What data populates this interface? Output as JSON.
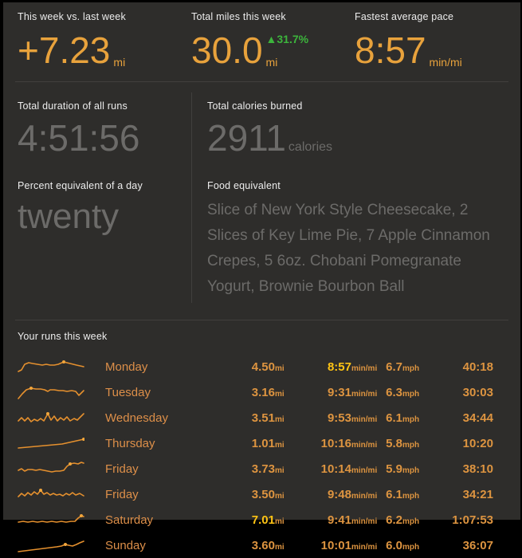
{
  "colors": {
    "background": "#2e2d2b",
    "accent_orange": "#e8a23c",
    "table_orange": "#dd9440",
    "highlight_yellow": "#ffc414",
    "delta_green": "#3cb43c",
    "muted_gray": "#6c6b69",
    "label_white": "#ededed"
  },
  "stats": [
    {
      "label": "This week vs. last week",
      "value": "+7.23",
      "suffix": "mi"
    },
    {
      "label": "Total miles this week",
      "value": "30.0",
      "suffix": "mi",
      "delta_arrow": "▲",
      "delta": "31.7%"
    },
    {
      "label": "Fastest average pace",
      "value": "8:57",
      "suffix": "min/mi"
    }
  ],
  "details": {
    "duration": {
      "label": "Total duration of all runs",
      "value": "4:51:56"
    },
    "calories": {
      "label": "Total calories burned",
      "value": "2911",
      "suffix": "calories"
    },
    "day_percent": {
      "label": "Percent equivalent of a day",
      "value": "twenty"
    },
    "food": {
      "label": "Food equivalent",
      "value": "Slice of New York Style Cheesecake, 2 Slices of Key Lime Pie, 7 Apple Cinnamon Crepes, 5 6oz. Chobani Pomegranate Yogurt, Brownie Bourbon Ball"
    }
  },
  "runs": {
    "title": "Your runs this week",
    "rows": [
      {
        "day": "Monday",
        "miles": "4.50",
        "miles_suffix": "mi",
        "miles_highlight": false,
        "pace": "8:57",
        "pace_suffix": "min/mi",
        "pace_highlight": true,
        "speed": "6.7",
        "speed_suffix": "mph",
        "duration": "40:18",
        "spark": [
          [
            1,
            17
          ],
          [
            5,
            15
          ],
          [
            9,
            8
          ],
          [
            14,
            6
          ],
          [
            19,
            7
          ],
          [
            25,
            8
          ],
          [
            31,
            9
          ],
          [
            36,
            8
          ],
          [
            41,
            9
          ],
          [
            46,
            9
          ],
          [
            51,
            8
          ],
          [
            58,
            5
          ],
          [
            66,
            7
          ],
          [
            74,
            9
          ],
          [
            83,
            11
          ]
        ],
        "dot": [
          58,
          5
        ]
      },
      {
        "day": "Tuesday",
        "miles": "3.16",
        "miles_suffix": "mi",
        "miles_highlight": false,
        "pace": "9:31",
        "pace_suffix": "min/mi",
        "pace_highlight": false,
        "speed": "6.3",
        "speed_suffix": "mph",
        "duration": "30:03",
        "spark": [
          [
            1,
            19
          ],
          [
            6,
            13
          ],
          [
            11,
            8
          ],
          [
            17,
            6
          ],
          [
            23,
            7
          ],
          [
            29,
            7
          ],
          [
            34,
            8
          ],
          [
            38,
            10
          ],
          [
            41,
            8
          ],
          [
            46,
            8
          ],
          [
            52,
            9
          ],
          [
            57,
            9
          ],
          [
            62,
            10
          ],
          [
            68,
            9
          ],
          [
            73,
            10
          ],
          [
            77,
            15
          ],
          [
            83,
            9
          ]
        ],
        "dot": [
          17,
          6
        ]
      },
      {
        "day": "Wednesday",
        "miles": "3.51",
        "miles_suffix": "mi",
        "miles_highlight": false,
        "pace": "9:53",
        "pace_suffix": "min/mi",
        "pace_highlight": false,
        "speed": "6.1",
        "speed_suffix": "mph",
        "duration": "34:44",
        "spark": [
          [
            1,
            15
          ],
          [
            5,
            11
          ],
          [
            9,
            15
          ],
          [
            13,
            11
          ],
          [
            17,
            16
          ],
          [
            21,
            13
          ],
          [
            25,
            15
          ],
          [
            29,
            12
          ],
          [
            33,
            15
          ],
          [
            38,
            6
          ],
          [
            42,
            14
          ],
          [
            46,
            9
          ],
          [
            50,
            15
          ],
          [
            54,
            11
          ],
          [
            58,
            14
          ],
          [
            62,
            10
          ],
          [
            66,
            15
          ],
          [
            71,
            12
          ],
          [
            75,
            14
          ],
          [
            83,
            6
          ]
        ],
        "dot": [
          38,
          6
        ]
      },
      {
        "day": "Thursday",
        "miles": "1.01",
        "miles_suffix": "mi",
        "miles_highlight": false,
        "pace": "10:16",
        "pace_suffix": "min/mi",
        "pace_highlight": false,
        "speed": "5.8",
        "speed_suffix": "mph",
        "duration": "10:20",
        "spark": [
          [
            1,
            17
          ],
          [
            12,
            16
          ],
          [
            23,
            15
          ],
          [
            34,
            14
          ],
          [
            45,
            13
          ],
          [
            56,
            12
          ],
          [
            65,
            10
          ],
          [
            74,
            8
          ],
          [
            83,
            6
          ]
        ],
        "dot": [
          83,
          6
        ]
      },
      {
        "day": "Friday",
        "miles": "3.73",
        "miles_suffix": "mi",
        "miles_highlight": false,
        "pace": "10:14",
        "pace_suffix": "min/mi",
        "pace_highlight": false,
        "speed": "5.9",
        "speed_suffix": "mph",
        "duration": "38:10",
        "spark": [
          [
            1,
            13
          ],
          [
            5,
            11
          ],
          [
            9,
            14
          ],
          [
            13,
            12
          ],
          [
            18,
            12
          ],
          [
            23,
            13
          ],
          [
            28,
            12
          ],
          [
            33,
            13
          ],
          [
            38,
            14
          ],
          [
            43,
            15
          ],
          [
            48,
            14
          ],
          [
            53,
            14
          ],
          [
            58,
            13
          ],
          [
            62,
            8
          ],
          [
            66,
            5
          ],
          [
            71,
            4
          ],
          [
            76,
            5
          ],
          [
            80,
            3
          ],
          [
            83,
            4
          ]
        ],
        "dot": [
          66,
          5
        ]
      },
      {
        "day": "Friday",
        "miles": "3.50",
        "miles_suffix": "mi",
        "miles_highlight": false,
        "pace": "9:48",
        "pace_suffix": "min/mi",
        "pace_highlight": false,
        "speed": "6.1",
        "speed_suffix": "mph",
        "duration": "34:21",
        "spark": [
          [
            1,
            14
          ],
          [
            5,
            10
          ],
          [
            9,
            13
          ],
          [
            13,
            9
          ],
          [
            17,
            12
          ],
          [
            21,
            8
          ],
          [
            25,
            11
          ],
          [
            29,
            6
          ],
          [
            33,
            11
          ],
          [
            37,
            9
          ],
          [
            41,
            12
          ],
          [
            45,
            10
          ],
          [
            49,
            12
          ],
          [
            53,
            11
          ],
          [
            57,
            13
          ],
          [
            61,
            10
          ],
          [
            65,
            12
          ],
          [
            69,
            9
          ],
          [
            73,
            12
          ],
          [
            78,
            10
          ],
          [
            83,
            13
          ]
        ],
        "dot": [
          29,
          6
        ]
      },
      {
        "day": "Saturday",
        "miles": "7.01",
        "miles_suffix": "mi",
        "miles_highlight": true,
        "pace": "9:41",
        "pace_suffix": "min/mi",
        "pace_highlight": false,
        "speed": "6.2",
        "speed_suffix": "mph",
        "duration": "1:07:53",
        "spark": [
          [
            1,
            14
          ],
          [
            7,
            13
          ],
          [
            13,
            14
          ],
          [
            19,
            13
          ],
          [
            25,
            14
          ],
          [
            31,
            13
          ],
          [
            37,
            14
          ],
          [
            43,
            13
          ],
          [
            49,
            14
          ],
          [
            55,
            13
          ],
          [
            61,
            14
          ],
          [
            67,
            13
          ],
          [
            72,
            13
          ],
          [
            76,
            9
          ],
          [
            80,
            6
          ],
          [
            83,
            7
          ]
        ],
        "dot": [
          80,
          6
        ]
      },
      {
        "day": "Sunday",
        "miles": "3.60",
        "miles_suffix": "mi",
        "miles_highlight": false,
        "pace": "10:01",
        "pace_suffix": "min/mi",
        "pace_highlight": false,
        "speed": "6.0",
        "speed_suffix": "mph",
        "duration": "36:07",
        "spark": [
          [
            1,
            19
          ],
          [
            9,
            18
          ],
          [
            17,
            17
          ],
          [
            25,
            16
          ],
          [
            33,
            15
          ],
          [
            41,
            14
          ],
          [
            49,
            13
          ],
          [
            55,
            12
          ],
          [
            60,
            10
          ],
          [
            64,
            11
          ],
          [
            69,
            12
          ],
          [
            74,
            10
          ],
          [
            78,
            8
          ],
          [
            83,
            6
          ]
        ],
        "dot": [
          60,
          10
        ]
      }
    ]
  }
}
